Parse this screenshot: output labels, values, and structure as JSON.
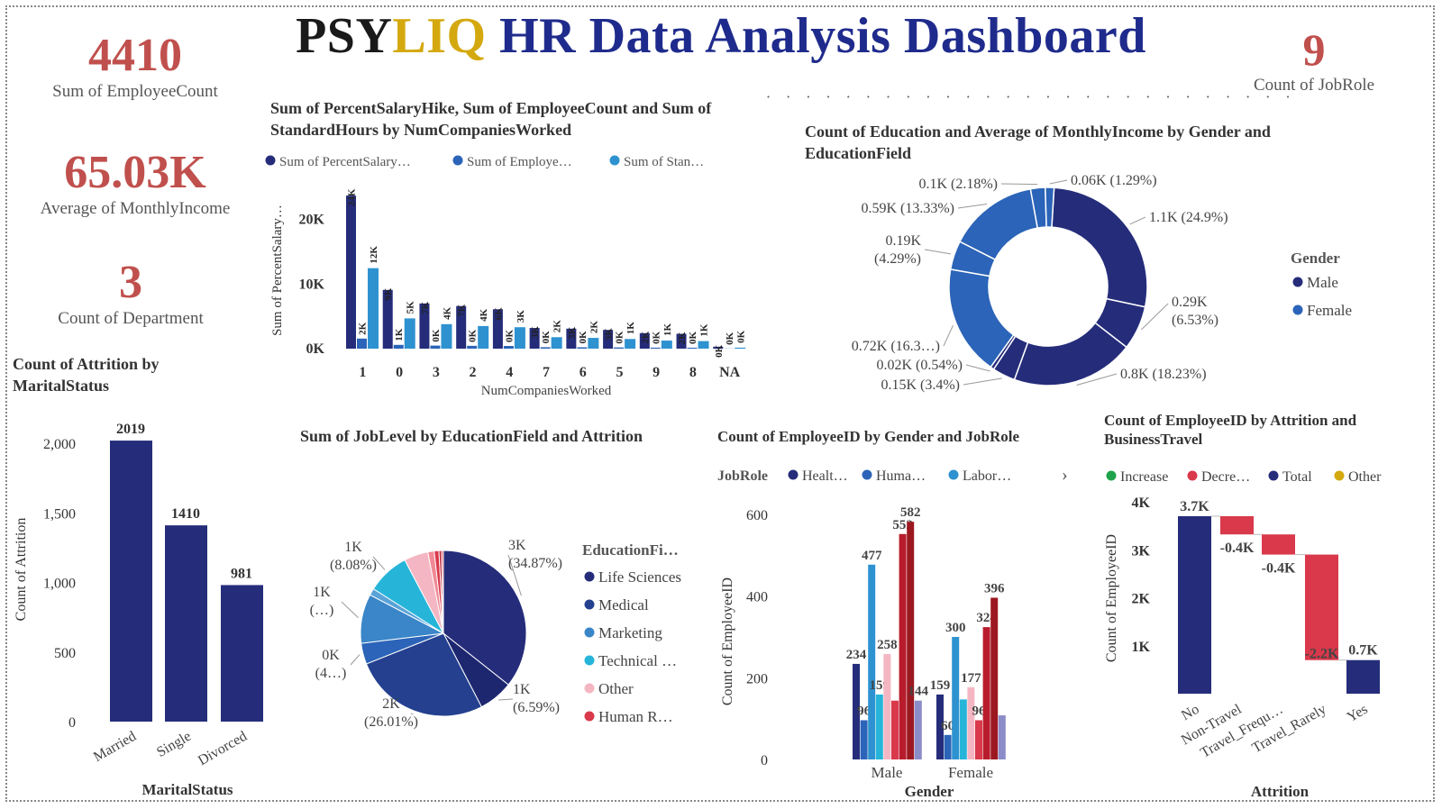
{
  "title": {
    "part1": "PSY",
    "part2": "LIQ",
    "part3": " HR Data Analysis Dashboard"
  },
  "colors": {
    "navy": "#252d7a",
    "blue": "#2b64b8",
    "lightblue": "#2e92d0",
    "cyan": "#26b5d9",
    "pink": "#f4b6c2",
    "red": "#d9394b",
    "kpi": "#c0504d",
    "gold": "#d4a90f"
  },
  "kpis": [
    {
      "value": "4410",
      "label": "Sum of EmployeeCount"
    },
    {
      "value": "65.03K",
      "label": "Average of MonthlyIncome"
    },
    {
      "value": "3",
      "label": "Count of Department"
    },
    {
      "value": "9",
      "label": "Count of JobRole"
    }
  ],
  "chart_data": [
    {
      "id": "companies",
      "type": "bar",
      "title": "Sum of PercentSalaryHike, Sum of EmployeeCount and Sum of StandardHours by NumCompaniesWorked",
      "legend": [
        "Sum of PercentSalary…",
        "Sum of Employe…",
        "Sum of Stan…"
      ],
      "xlabel": "NumCompaniesWorked",
      "ylabel": "Sum of PercentSalary…",
      "yticks": [
        "0K",
        "10K",
        "20K"
      ],
      "ylim": [
        0,
        24000
      ],
      "categories": [
        "1",
        "0",
        "3",
        "2",
        "4",
        "7",
        "6",
        "5",
        "9",
        "8",
        "NA"
      ],
      "series": [
        {
          "name": "Sum of PercentSalaryHike",
          "values": [
            23700,
            9100,
            7000,
            6600,
            6100,
            3200,
            3100,
            2900,
            2400,
            2300,
            300
          ],
          "labels": [
            "24K",
            "9K",
            "7K",
            "7K",
            "6K",
            "3K",
            "3K",
            "3K",
            "2K",
            "2K",
            "0K"
          ]
        },
        {
          "name": "Sum of EmployeeCount",
          "values": [
            1558,
            586,
            474,
            438,
            415,
            222,
            208,
            187,
            156,
            146,
            19
          ],
          "labels": [
            "2K",
            "1K",
            "0K",
            "0K",
            "0K",
            "0K",
            "0K",
            "0K",
            "0K",
            "0K",
            "0K"
          ]
        },
        {
          "name": "Sum of StandardHours",
          "values": [
            12464,
            4688,
            3792,
            3504,
            3320,
            1776,
            1664,
            1496,
            1248,
            1168,
            152
          ],
          "labels": [
            "12K",
            "5K",
            "4K",
            "4K",
            "3K",
            "2K",
            "2K",
            "1K",
            "1K",
            "1K",
            "0K"
          ]
        }
      ]
    },
    {
      "id": "education",
      "type": "pie",
      "title": "Count of Education and Average of MonthlyIncome by Gender and EducationField",
      "legend_title": "Gender",
      "legend": [
        "Male",
        "Female"
      ],
      "slices": [
        {
          "label": "1.1K (24.9%)",
          "pct": 24.9
        },
        {
          "label": "0.29K (6.53%)",
          "pct": 6.53
        },
        {
          "label": "0.8K (18.23%)",
          "pct": 18.23
        },
        {
          "label": "0.15K (3.4%)",
          "pct": 3.4
        },
        {
          "label": "0.02K (0.54%)",
          "pct": 0.54
        },
        {
          "label": "0.72K (16.3…)",
          "pct": 16.3
        },
        {
          "label": "0.19K (4.29%)",
          "pct": 4.29
        },
        {
          "label": "0.59K (13.33%)",
          "pct": 13.33
        },
        {
          "label": "0.1K (2.18%)",
          "pct": 2.18
        },
        {
          "label": "0.06K (1.29%)",
          "pct": 1.29
        }
      ]
    },
    {
      "id": "attrition",
      "type": "bar",
      "title": "Count of Attrition by MaritalStatus",
      "xlabel": "MaritalStatus",
      "ylabel": "Count of Attrition",
      "yticks": [
        "0",
        "500",
        "1,000",
        "1,500",
        "2,000"
      ],
      "ylim": [
        0,
        2000
      ],
      "categories": [
        "Married",
        "Single",
        "Divorced"
      ],
      "values": [
        2019,
        1410,
        981
      ]
    },
    {
      "id": "joblevel",
      "type": "pie",
      "title": "Sum of JobLevel by EducationField and Attrition",
      "legend_title": "EducationFi…",
      "legend": [
        "Life Sciences",
        "Medical",
        "Marketing",
        "Technical …",
        "Other",
        "Human R…"
      ],
      "slices": [
        {
          "label1": "3K",
          "label2": "(34.87%)",
          "pct": 34.87
        },
        {
          "label1": "1K",
          "label2": "(6.59%)",
          "pct": 6.59
        },
        {
          "label1": "2K",
          "label2": "(26.01%)",
          "pct": 26.01
        },
        {
          "label1": "0K",
          "label2": "(4…)",
          "pct": 4.0
        },
        {
          "label1": "1K",
          "label2": "(…)",
          "pct": 9.4
        },
        {
          "label1": "",
          "label2": "",
          "pct": 1.3
        },
        {
          "label1": "1K",
          "label2": "(8.08%)",
          "pct": 8.08
        },
        {
          "label1": "",
          "label2": "",
          "pct": 4.6
        },
        {
          "label1": "",
          "label2": "",
          "pct": 1.2
        },
        {
          "label1": "",
          "label2": "",
          "pct": 0.9
        },
        {
          "label1": "",
          "label2": "",
          "pct": 0.5
        },
        {
          "label1": "",
          "label2": "",
          "pct": 0.35
        }
      ]
    },
    {
      "id": "gender",
      "type": "bar",
      "title": "Count of EmployeeID by Gender and JobRole",
      "legend_title": "JobRole",
      "legend": [
        "Healt…",
        "Huma…",
        "Labor…"
      ],
      "xlabel": "Gender",
      "ylabel": "Count of EmployeeID",
      "yticks": [
        "0",
        "200",
        "400",
        "600"
      ],
      "ylim": [
        0,
        600
      ],
      "categories": [
        "Male",
        "Female"
      ],
      "series_values": [
        [
          234,
          96,
          477,
          159,
          258,
          144,
          552,
          582,
          144
        ],
        [
          159,
          60,
          300,
          147,
          177,
          96,
          324,
          396,
          108
        ]
      ],
      "series_labels": [
        [
          "234",
          "96",
          "477",
          "159",
          "258",
          "",
          "552",
          "582",
          "144"
        ],
        [
          "159",
          "60",
          "300",
          "",
          "177",
          "96",
          "324",
          "396",
          ""
        ]
      ]
    },
    {
      "id": "waterfall",
      "type": "bar",
      "title": "Count of EmployeeID by Attrition and BusinessTravel",
      "legend": [
        "Increase",
        "Decre…",
        "Total",
        "Other"
      ],
      "xlabel": "Attrition",
      "ylabel": "Count of EmployeeID",
      "yticks": [
        "1K",
        "2K",
        "3K",
        "4K"
      ],
      "ylim": [
        0,
        4000
      ],
      "categories": [
        "No",
        "Non-Travel",
        "Travel_Frequ…",
        "Travel_Rarely",
        "Yes"
      ],
      "steps": [
        {
          "kind": "total",
          "from": 0,
          "to": 3700,
          "label": "3.7K"
        },
        {
          "kind": "decrease",
          "from": 3700,
          "to": 3320,
          "label": "-0.4K"
        },
        {
          "kind": "decrease",
          "from": 3320,
          "to": 2900,
          "label": "-0.4K"
        },
        {
          "kind": "decrease",
          "from": 2900,
          "to": 700,
          "label": "-2.2K"
        },
        {
          "kind": "total",
          "from": 0,
          "to": 700,
          "label": "0.7K"
        }
      ]
    }
  ]
}
